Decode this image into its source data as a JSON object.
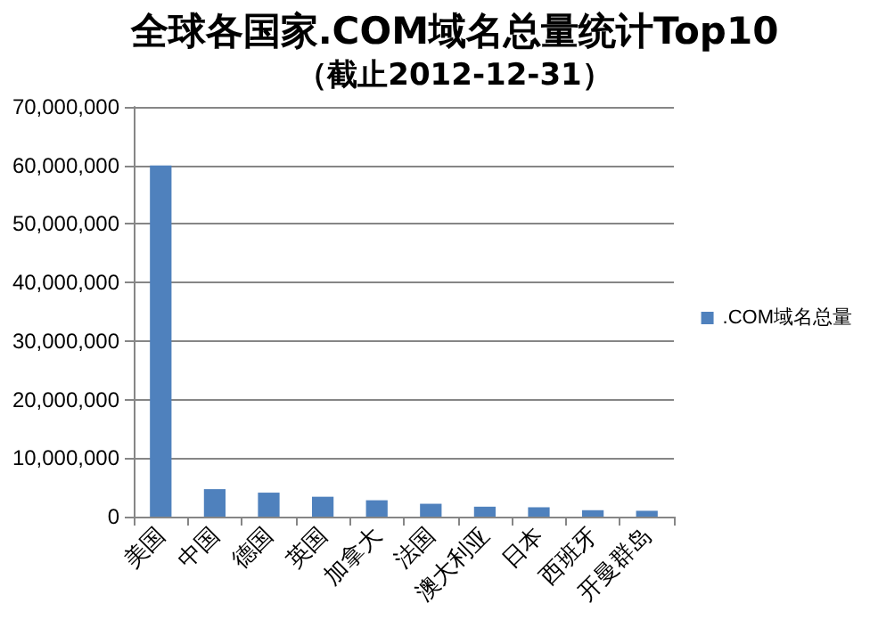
{
  "chart_data": {
    "type": "bar",
    "title": "全球各国家.COM域名总量统计Top10",
    "subtitle": "（截止2012-12-31）",
    "categories": [
      "美国",
      "中国",
      "德国",
      "英国",
      "加拿大",
      "法国",
      "澳大利亚",
      "日本",
      "西班牙",
      "开曼群岛"
    ],
    "series": [
      {
        "name": ".COM域名总量",
        "color": "#4f81bd",
        "values": [
          60000000,
          4700000,
          4100000,
          3400000,
          2800000,
          2200000,
          1700000,
          1600000,
          1100000,
          1000000
        ]
      }
    ],
    "ylim": [
      0,
      70000000
    ],
    "yticks": [
      0,
      {
        "value": 10000000,
        "label": "10,000,000"
      },
      {
        "value": 20000000,
        "label": "20,000,000"
      },
      {
        "value": 30000000,
        "label": "30,000,000"
      },
      {
        "value": 40000000,
        "label": "40,000,000"
      },
      {
        "value": 50000000,
        "label": "50,000,000"
      },
      {
        "value": 60000000,
        "label": "60,000,000"
      },
      {
        "value": 70000000,
        "label": "70,000,000"
      }
    ],
    "grid": "y",
    "legend": "right"
  }
}
